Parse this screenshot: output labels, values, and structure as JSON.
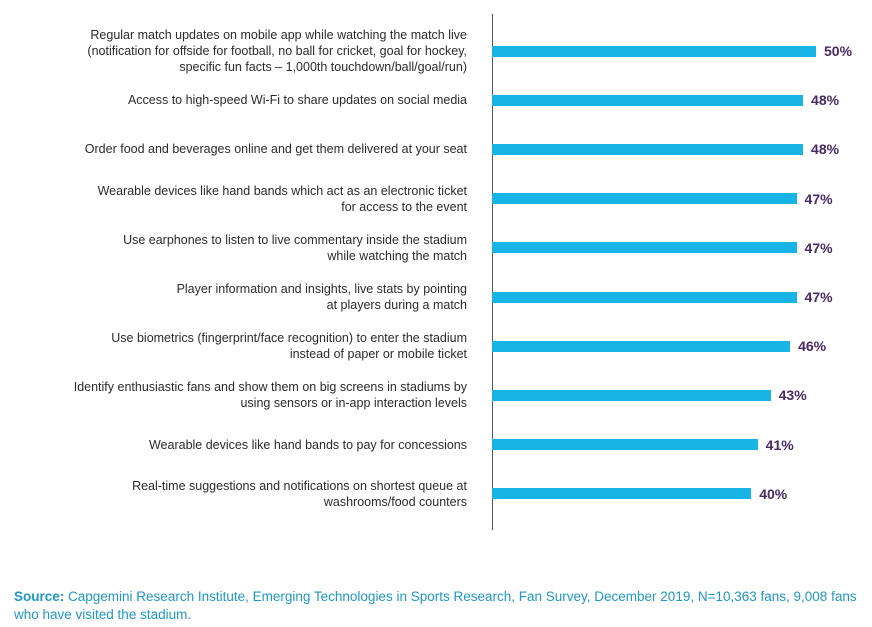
{
  "chart_data": {
    "type": "bar",
    "orientation": "horizontal",
    "categories": [
      [
        "Regular match updates on mobile app while watching the match live",
        "(notification for offside for football, no ball for cricket, goal for hockey,",
        "specific fun facts – 1,000th touchdown/ball/goal/run)"
      ],
      [
        "Access to high-speed Wi-Fi to share updates on social media"
      ],
      [
        "Order food and beverages online and get them delivered at your seat"
      ],
      [
        "Wearable devices like hand bands which act as an electronic ticket",
        "for access to the event"
      ],
      [
        "Use earphones to listen to live commentary inside the stadium",
        "while watching the match"
      ],
      [
        "Player information and insights, live stats by pointing",
        "at players during a match"
      ],
      [
        "Use biometrics (fingerprint/face recognition) to enter the stadium",
        "instead of paper or mobile ticket"
      ],
      [
        "Identify enthusiastic fans and show them on big screens in stadiums by",
        "using sensors or in-app interaction levels"
      ],
      [
        "Wearable devices like hand bands to pay for concessions"
      ],
      [
        "Real-time suggestions and notifications on shortest queue at",
        "washrooms/food counters"
      ]
    ],
    "values": [
      50,
      48,
      48,
      47,
      47,
      47,
      46,
      43,
      41,
      40
    ],
    "value_labels": [
      "50%",
      "48%",
      "48%",
      "47%",
      "47%",
      "47%",
      "46%",
      "43%",
      "41%",
      "40%"
    ],
    "unit": "%",
    "xlim": [
      0,
      50
    ],
    "grid": false,
    "legend": "none",
    "bar_color": "#19b4e6",
    "label_color": "#4a2a63"
  },
  "source": {
    "key": "Source:",
    "text": " Capgemini Research Institute, Emerging Technologies in Sports Research, Fan Survey, December 2019, N=10,363 fans, 9,008 fans who have visited the stadium."
  }
}
